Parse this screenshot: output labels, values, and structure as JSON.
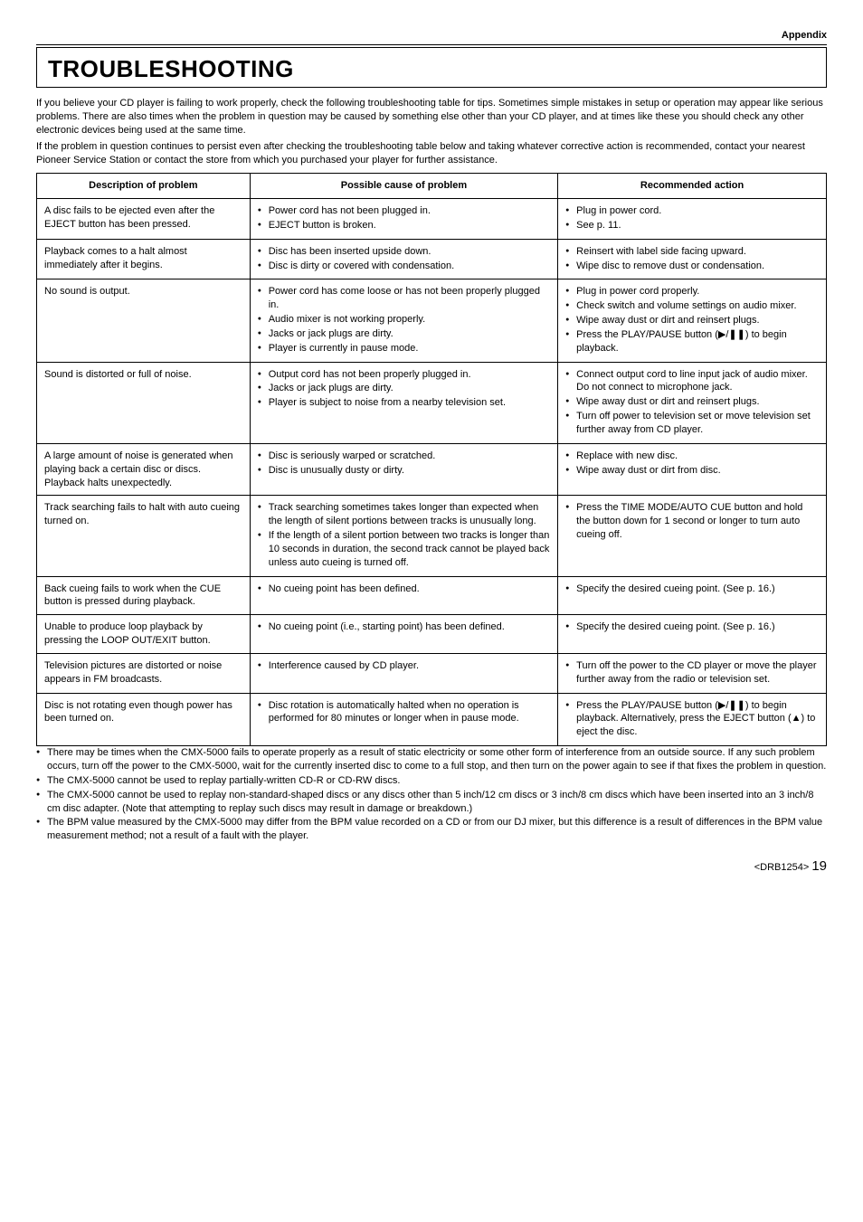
{
  "header": {
    "label": "Appendix"
  },
  "title": "TROUBLESHOOTING",
  "intro": {
    "p1": "If you believe your CD player is failing to work properly, check the following troubleshooting table for tips. Sometimes simple mistakes in setup or operation may appear like serious problems. There are also times when the problem in question may be caused by something else other than your CD player, and at times like these you should check any other electronic devices being used at the same time.",
    "p2": "If the problem in question continues to persist even after checking the troubleshooting table below and taking whatever corrective action is recommended, contact your nearest Pioneer Service Station or contact the store from which you purchased your player for further assistance."
  },
  "columns": {
    "desc": "Description of problem",
    "cause": "Possible cause of problem",
    "rec": "Recommended action"
  },
  "rows": [
    {
      "desc": "A disc fails to be ejected even after the EJECT button has been pressed.",
      "cause": [
        "Power cord has not been plugged in.",
        "EJECT button is broken."
      ],
      "rec": [
        "Plug in power cord.",
        "See p. 11."
      ]
    },
    {
      "desc": "Playback comes to a halt almost immediately after it begins.",
      "cause": [
        "Disc has been inserted upside down.",
        "Disc is dirty or covered with condensation."
      ],
      "rec": [
        "Reinsert with label side facing upward.",
        "Wipe disc to remove dust or condensation."
      ]
    },
    {
      "desc": "No sound is output.",
      "cause": [
        "Power cord has come loose or has not been properly plugged in.",
        "Audio mixer is not working properly.",
        "Jacks or jack plugs are dirty.",
        "Player is currently in pause mode."
      ],
      "rec": [
        "Plug in power cord properly.",
        "Check switch and volume settings on audio mixer.",
        "Wipe away dust or dirt and reinsert plugs.",
        "Press the PLAY/PAUSE button (▶/❚❚) to begin playback."
      ]
    },
    {
      "desc": "Sound is distorted or full of noise.",
      "cause": [
        "Output cord has not been properly plugged in.",
        "Jacks or jack plugs are dirty.",
        "Player is subject to noise from a nearby television set."
      ],
      "rec": [
        "Connect output cord to line input jack of audio mixer. Do not connect to microphone jack.",
        "Wipe away dust or dirt and reinsert plugs.",
        "Turn off power to television set or move television set further away from CD player."
      ]
    },
    {
      "desc": "A large amount of noise is generated when playing back a certain disc or discs. Playback halts unexpectedly.",
      "cause": [
        "Disc is seriously warped or scratched.",
        "Disc is unusually dusty or dirty."
      ],
      "rec": [
        "Replace with new disc.",
        "Wipe away dust or dirt from disc."
      ]
    },
    {
      "desc": "Track searching fails to halt with auto cueing turned on.",
      "cause": [
        "Track searching sometimes takes longer than expected when the length of silent portions between tracks is unusually long.",
        "If the length of a silent portion between two tracks is longer than 10 seconds in duration, the second track cannot be played back unless auto cueing is turned off."
      ],
      "rec": [
        "Press the TIME MODE/AUTO CUE button and hold the button down for 1 second or longer to turn auto cueing off."
      ]
    },
    {
      "desc": "Back cueing fails to work when the CUE button is pressed during playback.",
      "cause": [
        "No cueing point has been defined."
      ],
      "rec": [
        "Specify the desired cueing point. (See p. 16.)"
      ]
    },
    {
      "desc": "Unable to produce loop playback by pressing the LOOP OUT/EXIT button.",
      "cause": [
        "No cueing point (i.e., starting point) has been defined."
      ],
      "rec": [
        "Specify the desired cueing point. (See p. 16.)"
      ]
    },
    {
      "desc": "Television pictures are distorted or noise appears in FM broadcasts.",
      "cause": [
        "Interference caused by CD player."
      ],
      "rec": [
        "Turn off the power to the CD player or move the player further away from the radio or television set."
      ]
    },
    {
      "desc": "Disc is not rotating even though power has been turned on.",
      "cause": [
        "Disc rotation is automatically halted when no operation is performed for 80 minutes or longer when in pause mode."
      ],
      "rec": [
        "Press the PLAY/PAUSE button (▶/❚❚) to begin playback. Alternatively, press the EJECT button (▲) to eject the disc."
      ]
    }
  ],
  "footnotes": [
    "There may be times when the CMX-5000 fails to operate properly as a result of static electricity or some other form of interference from an outside source. If any such problem occurs, turn off the power to the CMX-5000, wait for the currently inserted disc to come to a full stop, and then turn on the power again to see if that fixes the problem in question.",
    "The CMX-5000 cannot be used to replay partially-written CD-R or CD-RW discs.",
    "The CMX-5000 cannot be used to replay non-standard-shaped discs or any discs other than 5 inch/12 cm discs or 3 inch/8 cm discs which have been inserted into an 3 inch/8 cm disc adapter. (Note that attempting to replay such discs may result in damage or breakdown.)",
    "The BPM value measured by the CMX-5000 may differ from the BPM value recorded on a CD or from our DJ mixer, but this difference is a result of differences in the BPM value measurement method; not a result of a fault with the player."
  ],
  "footer": {
    "code": "<DRB1254>",
    "page": "19"
  }
}
